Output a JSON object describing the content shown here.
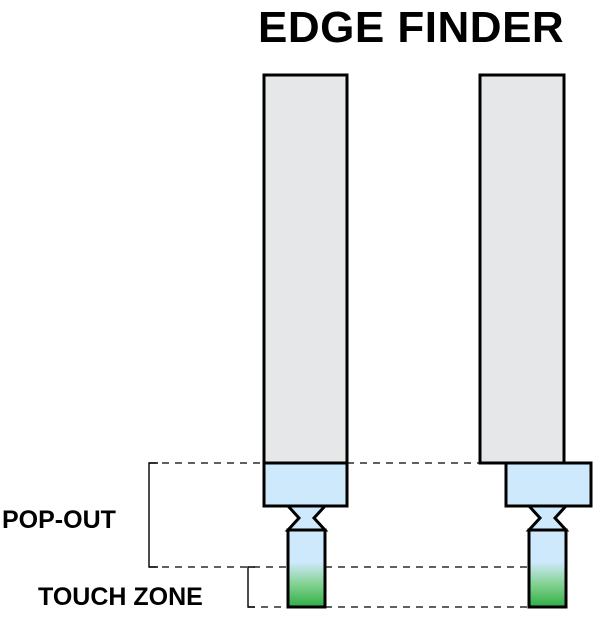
{
  "title": "EDGE FINDER",
  "labels": {
    "pop_out": "POP-OUT",
    "touch_zone": "TOUCH ZONE"
  },
  "tools": [
    {
      "name": "centered-edge-finder",
      "state": "centered"
    },
    {
      "name": "offset-edge-finder",
      "state": "offset"
    }
  ],
  "colors": {
    "shank": "#e6e7e9",
    "outline": "#000000",
    "body_light_blue": "#cde9fb",
    "tip_green": "#2fae45",
    "dashed_line": "#000000",
    "background": "#ffffff"
  }
}
